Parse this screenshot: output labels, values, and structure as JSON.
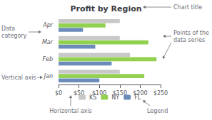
{
  "chart_data": {
    "type": "bar",
    "orientation": "horizontal",
    "title": "Profit by Region",
    "categories": [
      "Jan",
      "Feb",
      "Mar",
      "Apr"
    ],
    "series": [
      {
        "name": "KS",
        "color": "#c8c8c8",
        "values": [
          150,
          175,
          150,
          150
        ]
      },
      {
        "name": "NY",
        "color": "#92d050",
        "values": [
          210,
          240,
          220,
          115
        ]
      },
      {
        "name": "FL",
        "color": "#6b8cba",
        "values": [
          100,
          130,
          90,
          60
        ]
      }
    ],
    "xlim": [
      0,
      250
    ],
    "xticks": [
      {
        "value": 0,
        "label": "$0"
      },
      {
        "value": 50,
        "label": "$50"
      },
      {
        "value": 100,
        "label": "$100"
      },
      {
        "value": 150,
        "label": "$150"
      },
      {
        "value": 200,
        "label": "$200"
      },
      {
        "value": 250,
        "label": "$250"
      }
    ],
    "grid": false,
    "legend": "bottom",
    "annotations": [
      "Chart title",
      "Points of the\ndata series",
      "Data\ncategory",
      "Vertical axis",
      "Horizontal axis",
      "Legend"
    ]
  }
}
